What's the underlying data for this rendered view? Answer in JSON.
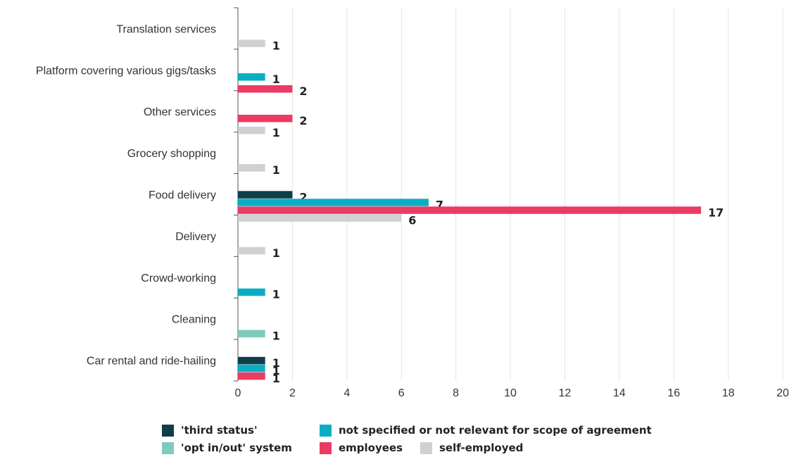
{
  "chart_data": {
    "type": "bar",
    "orientation": "horizontal",
    "categories": [
      "Translation services",
      "Platform covering various gigs/tasks",
      "Other services",
      "Grocery shopping",
      "Food delivery",
      "Delivery",
      "Crowd-working",
      "Cleaning",
      "Car rental and ride-hailing"
    ],
    "series": [
      {
        "name": "'third status'",
        "color": "#0f3d4a",
        "values": [
          null,
          null,
          null,
          null,
          2,
          null,
          null,
          null,
          1
        ]
      },
      {
        "name": "'opt in/out' system",
        "color": "#7ecbbd",
        "values": [
          null,
          null,
          null,
          null,
          null,
          null,
          null,
          1,
          null
        ]
      },
      {
        "name": "not specified or not relevant for scope of agreement",
        "color": "#0aaec4",
        "values": [
          null,
          1,
          null,
          null,
          7,
          null,
          1,
          null,
          1
        ]
      },
      {
        "name": "employees",
        "color": "#ec3b62",
        "values": [
          null,
          2,
          2,
          null,
          17,
          null,
          null,
          null,
          1
        ]
      },
      {
        "name": "self-employed",
        "color": "#d0d0d0",
        "values": [
          1,
          null,
          1,
          1,
          6,
          1,
          null,
          null,
          null
        ]
      }
    ],
    "xlim": [
      0,
      20
    ],
    "xticks": [
      "0",
      "2",
      "4",
      "6",
      "8",
      "10",
      "12",
      "14",
      "16",
      "18",
      "20"
    ],
    "grid": true,
    "legend_position": "bottom",
    "title": "",
    "xlabel": "",
    "ylabel": ""
  },
  "legend": [
    {
      "label": "'third status'",
      "color": "#0f3d4a"
    },
    {
      "label": "not specified or not relevant for scope of agreement",
      "color": "#0aaec4"
    },
    {
      "label": "'opt in/out' system",
      "color": "#7ecbbd"
    },
    {
      "label": "employees",
      "color": "#ec3b62"
    },
    {
      "label": "self-employed",
      "color": "#d0d0d0"
    }
  ]
}
